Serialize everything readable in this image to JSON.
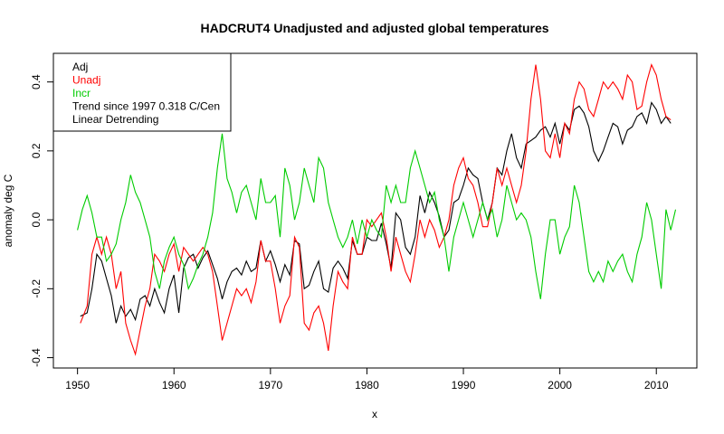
{
  "chart_data": {
    "type": "line",
    "title": "HADCRUT4 Unadjusted and adjusted global temperatures",
    "xlabel": "x",
    "ylabel": "anomaly deg C",
    "xlim": [
      1947.5,
      2014.2
    ],
    "ylim": [
      -0.43,
      0.483
    ],
    "xticks": [
      1950,
      1960,
      1970,
      1980,
      1990,
      2000,
      2010
    ],
    "yticks": [
      -0.4,
      -0.2,
      0.0,
      0.2,
      0.4
    ],
    "ytick_labels": [
      "-0.4",
      "-0.2",
      "0.0",
      "0.2",
      "0.4"
    ],
    "grid": false,
    "legend_position": "top-left",
    "legend": [
      {
        "label": "Adj",
        "color": "#000000"
      },
      {
        "label": "Unadj",
        "color": "#ff0000"
      },
      {
        "label": "Incr",
        "color": "#00cc00"
      },
      {
        "label": "Trend since 1997 0.318 C/Cen",
        "color": "#000000"
      },
      {
        "label": "Linear Detrending",
        "color": "#000000"
      }
    ],
    "series": [
      {
        "name": "Adj",
        "color": "#000000",
        "x": [
          1950.3,
          1951.0,
          1951.5,
          1952.0,
          1952.5,
          1953.0,
          1953.5,
          1954.0,
          1954.5,
          1955.0,
          1955.5,
          1956.0,
          1956.5,
          1957.0,
          1957.5,
          1958.0,
          1958.5,
          1959.0,
          1959.5,
          1960.0,
          1960.5,
          1961.0,
          1961.5,
          1962.0,
          1962.5,
          1963.0,
          1963.5,
          1964.0,
          1964.5,
          1965.0,
          1965.5,
          1966.0,
          1966.5,
          1967.0,
          1967.5,
          1968.0,
          1968.5,
          1969.0,
          1969.5,
          1970.0,
          1970.5,
          1971.0,
          1971.5,
          1972.0,
          1972.5,
          1973.0,
          1973.5,
          1974.0,
          1974.5,
          1975.0,
          1975.5,
          1976.0,
          1976.5,
          1977.0,
          1977.5,
          1978.0,
          1978.5,
          1979.0,
          1979.5,
          1980.0,
          1980.5,
          1981.0,
          1981.5,
          1982.0,
          1982.5,
          1983.0,
          1983.5,
          1984.0,
          1984.5,
          1985.0,
          1985.5,
          1986.0,
          1986.5,
          1987.0,
          1987.5,
          1988.0,
          1988.5,
          1989.0,
          1989.5,
          1990.0,
          1990.5,
          1991.0,
          1991.5,
          1992.0,
          1992.5,
          1993.0,
          1993.5,
          1994.0,
          1994.5,
          1995.0,
          1995.5,
          1996.0,
          1996.5,
          1997.0,
          1997.5,
          1998.0,
          1998.5,
          1999.0,
          1999.5,
          2000.0,
          2000.5,
          2001.0,
          2001.5,
          2002.0,
          2002.5,
          2003.0,
          2003.5,
          2004.0,
          2004.5,
          2005.0,
          2005.5,
          2006.0,
          2006.5,
          2007.0,
          2007.5,
          2008.0,
          2008.5,
          2009.0,
          2009.5,
          2010.0,
          2010.5,
          2011.0,
          2011.5
        ],
        "y": [
          -0.28,
          -0.27,
          -0.2,
          -0.1,
          -0.12,
          -0.17,
          -0.22,
          -0.3,
          -0.25,
          -0.28,
          -0.26,
          -0.29,
          -0.23,
          -0.22,
          -0.25,
          -0.2,
          -0.24,
          -0.27,
          -0.2,
          -0.16,
          -0.27,
          -0.14,
          -0.11,
          -0.1,
          -0.14,
          -0.11,
          -0.09,
          -0.13,
          -0.17,
          -0.23,
          -0.18,
          -0.15,
          -0.14,
          -0.16,
          -0.12,
          -0.15,
          -0.14,
          -0.06,
          -0.12,
          -0.09,
          -0.13,
          -0.18,
          -0.13,
          -0.16,
          -0.06,
          -0.07,
          -0.2,
          -0.19,
          -0.15,
          -0.12,
          -0.2,
          -0.21,
          -0.14,
          -0.12,
          -0.14,
          -0.17,
          -0.06,
          -0.1,
          -0.1,
          -0.05,
          -0.06,
          -0.06,
          -0.01,
          -0.07,
          -0.14,
          0.02,
          0.0,
          -0.08,
          -0.1,
          -0.05,
          0.07,
          0.02,
          0.08,
          0.05,
          0.01,
          -0.05,
          -0.03,
          0.05,
          0.06,
          0.1,
          0.15,
          0.13,
          0.12,
          0.05,
          0.0,
          0.05,
          0.15,
          0.13,
          0.2,
          0.25,
          0.18,
          0.15,
          0.22,
          0.23,
          0.24,
          0.26,
          0.27,
          0.24,
          0.28,
          0.22,
          0.28,
          0.26,
          0.32,
          0.33,
          0.31,
          0.27,
          0.2,
          0.17,
          0.2,
          0.24,
          0.28,
          0.27,
          0.22,
          0.26,
          0.27,
          0.3,
          0.31,
          0.28,
          0.34,
          0.32,
          0.28,
          0.3,
          0.28
        ]
      },
      {
        "name": "Unadj",
        "color": "#ff0000",
        "x": [
          1950.3,
          1951.0,
          1951.5,
          1952.0,
          1952.5,
          1953.0,
          1953.5,
          1954.0,
          1954.5,
          1955.0,
          1955.5,
          1956.0,
          1956.5,
          1957.0,
          1957.5,
          1958.0,
          1958.5,
          1959.0,
          1959.5,
          1960.0,
          1960.5,
          1961.0,
          1961.5,
          1962.0,
          1962.5,
          1963.0,
          1963.5,
          1964.0,
          1964.5,
          1965.0,
          1965.5,
          1966.0,
          1966.5,
          1967.0,
          1967.5,
          1968.0,
          1968.5,
          1969.0,
          1969.5,
          1970.0,
          1970.5,
          1971.0,
          1971.5,
          1972.0,
          1972.5,
          1973.0,
          1973.5,
          1974.0,
          1974.5,
          1975.0,
          1975.5,
          1976.0,
          1976.5,
          1977.0,
          1977.5,
          1978.0,
          1978.5,
          1979.0,
          1979.5,
          1980.0,
          1980.5,
          1981.0,
          1981.5,
          1982.0,
          1982.5,
          1983.0,
          1983.5,
          1984.0,
          1984.5,
          1985.0,
          1985.5,
          1986.0,
          1986.5,
          1987.0,
          1987.5,
          1988.0,
          1988.5,
          1989.0,
          1989.5,
          1990.0,
          1990.5,
          1991.0,
          1991.5,
          1992.0,
          1992.5,
          1993.0,
          1993.5,
          1994.0,
          1994.5,
          1995.0,
          1995.5,
          1996.0,
          1996.5,
          1997.0,
          1997.5,
          1998.0,
          1998.5,
          1999.0,
          1999.5,
          2000.0,
          2000.5,
          2001.0,
          2001.5,
          2002.0,
          2002.5,
          2003.0,
          2003.5,
          2004.0,
          2004.5,
          2005.0,
          2005.5,
          2006.0,
          2006.5,
          2007.0,
          2007.5,
          2008.0,
          2008.5,
          2009.0,
          2009.5,
          2010.0,
          2010.5,
          2011.0,
          2011.5
        ],
        "y": [
          -0.3,
          -0.25,
          -0.1,
          -0.05,
          -0.1,
          -0.05,
          -0.1,
          -0.2,
          -0.15,
          -0.3,
          -0.35,
          -0.39,
          -0.32,
          -0.25,
          -0.2,
          -0.1,
          -0.12,
          -0.15,
          -0.1,
          -0.07,
          -0.15,
          -0.08,
          -0.1,
          -0.12,
          -0.1,
          -0.08,
          -0.1,
          -0.15,
          -0.25,
          -0.35,
          -0.3,
          -0.25,
          -0.2,
          -0.22,
          -0.2,
          -0.24,
          -0.18,
          -0.06,
          -0.12,
          -0.12,
          -0.2,
          -0.3,
          -0.25,
          -0.22,
          -0.05,
          -0.08,
          -0.3,
          -0.32,
          -0.27,
          -0.25,
          -0.3,
          -0.38,
          -0.25,
          -0.15,
          -0.18,
          -0.2,
          -0.05,
          -0.1,
          -0.1,
          0.0,
          -0.02,
          0.0,
          0.02,
          -0.05,
          -0.15,
          -0.05,
          -0.1,
          -0.15,
          -0.18,
          -0.1,
          0.0,
          -0.05,
          0.0,
          -0.03,
          -0.08,
          -0.05,
          0.0,
          0.1,
          0.15,
          0.18,
          0.12,
          0.1,
          0.05,
          -0.02,
          -0.02,
          0.05,
          0.15,
          0.1,
          0.15,
          0.1,
          0.05,
          0.1,
          0.2,
          0.35,
          0.45,
          0.35,
          0.2,
          0.18,
          0.25,
          0.18,
          0.28,
          0.25,
          0.35,
          0.4,
          0.38,
          0.32,
          0.3,
          0.35,
          0.4,
          0.38,
          0.4,
          0.38,
          0.35,
          0.42,
          0.4,
          0.32,
          0.33,
          0.4,
          0.45,
          0.42,
          0.35,
          0.3,
          0.29
        ]
      },
      {
        "name": "Incr",
        "color": "#00cc00",
        "x": [
          1950.0,
          1950.5,
          1951.0,
          1951.5,
          1952.0,
          1952.5,
          1953.0,
          1953.5,
          1954.0,
          1954.5,
          1955.0,
          1955.5,
          1956.0,
          1956.5,
          1957.0,
          1957.5,
          1958.0,
          1958.5,
          1959.0,
          1959.5,
          1960.0,
          1960.5,
          1961.0,
          1961.5,
          1962.0,
          1962.5,
          1963.0,
          1963.5,
          1964.0,
          1964.5,
          1965.0,
          1965.5,
          1966.0,
          1966.5,
          1967.0,
          1967.5,
          1968.0,
          1968.5,
          1969.0,
          1969.5,
          1970.0,
          1970.5,
          1971.0,
          1971.5,
          1972.0,
          1972.5,
          1973.0,
          1973.5,
          1974.0,
          1974.5,
          1975.0,
          1975.5,
          1976.0,
          1976.5,
          1977.0,
          1977.5,
          1978.0,
          1978.5,
          1979.0,
          1979.5,
          1980.0,
          1980.5,
          1981.0,
          1981.5,
          1982.0,
          1982.5,
          1983.0,
          1983.5,
          1984.0,
          1984.5,
          1985.0,
          1985.5,
          1986.0,
          1986.5,
          1987.0,
          1987.5,
          1988.0,
          1988.5,
          1989.0,
          1989.5,
          1990.0,
          1990.5,
          1991.0,
          1991.5,
          1992.0,
          1992.5,
          1993.0,
          1993.5,
          1994.0,
          1994.5,
          1995.0,
          1995.5,
          1996.0,
          1996.5,
          1997.0,
          1997.5,
          1998.0,
          1998.5,
          1999.0,
          1999.5,
          2000.0,
          2000.5,
          2001.0,
          2001.5,
          2002.0,
          2002.5,
          2003.0,
          2003.5,
          2004.0,
          2004.5,
          2005.0,
          2005.5,
          2006.0,
          2006.5,
          2007.0,
          2007.5,
          2008.0,
          2008.5,
          2009.0,
          2009.5,
          2010.0,
          2010.5,
          2011.0,
          2011.5,
          2012.0
        ],
        "y": [
          -0.03,
          0.03,
          0.07,
          0.02,
          -0.05,
          -0.05,
          -0.12,
          -0.1,
          -0.07,
          0.0,
          0.05,
          0.13,
          0.08,
          0.05,
          0.0,
          -0.05,
          -0.15,
          -0.2,
          -0.12,
          -0.08,
          -0.05,
          -0.1,
          -0.13,
          -0.2,
          -0.17,
          -0.13,
          -0.1,
          -0.05,
          0.02,
          0.15,
          0.25,
          0.12,
          0.08,
          0.02,
          0.08,
          0.1,
          0.05,
          0.0,
          0.12,
          0.05,
          0.05,
          0.07,
          -0.05,
          0.15,
          0.1,
          0.0,
          0.05,
          0.15,
          0.1,
          0.05,
          0.18,
          0.15,
          0.05,
          0.0,
          -0.05,
          -0.08,
          -0.05,
          0.0,
          -0.07,
          0.0,
          -0.05,
          0.0,
          -0.03,
          -0.05,
          0.1,
          0.05,
          0.1,
          0.05,
          0.05,
          0.15,
          0.2,
          0.15,
          0.1,
          0.05,
          0.08,
          0.0,
          -0.05,
          -0.15,
          -0.05,
          0.0,
          0.05,
          0.0,
          -0.05,
          0.0,
          0.05,
          0.0,
          0.03,
          -0.05,
          0.0,
          0.1,
          0.05,
          0.0,
          0.02,
          0.0,
          -0.05,
          -0.15,
          -0.23,
          -0.1,
          0.0,
          0.0,
          -0.1,
          -0.05,
          -0.02,
          0.1,
          0.05,
          -0.05,
          -0.15,
          -0.18,
          -0.15,
          -0.18,
          -0.12,
          -0.15,
          -0.12,
          -0.1,
          -0.15,
          -0.18,
          -0.1,
          -0.05,
          0.05,
          0.0,
          -0.1,
          -0.2,
          0.03,
          -0.03,
          0.03
        ]
      }
    ]
  }
}
